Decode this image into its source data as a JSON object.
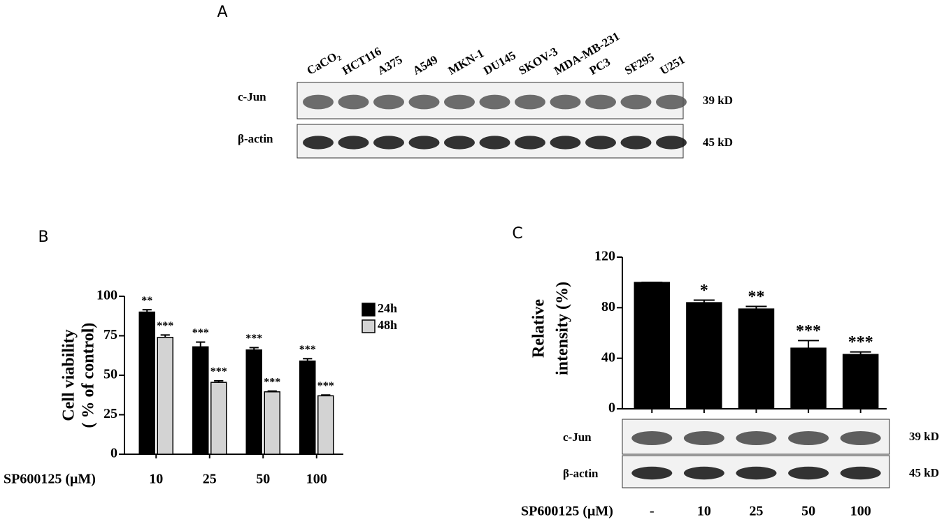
{
  "panel_a": {
    "label": "A",
    "lanes": [
      "CaCO₂",
      "HCT116",
      "A375",
      "A549",
      "MKN-1",
      "DU145",
      "SKOV-3",
      "MDA-MB-231",
      "PC3",
      "SF295",
      "U251"
    ],
    "rows": [
      {
        "name": "c-Jun",
        "size": "39 kD"
      },
      {
        "name": "β-actin",
        "size": "45 kD"
      }
    ]
  },
  "chart_data": [
    {
      "type": "bar",
      "panel_label": "B",
      "y_label": [
        "Cell viability",
        "( % of control)"
      ],
      "x_label": "SP600125  (μM)",
      "categories": [
        "10",
        "25",
        "50",
        "100"
      ],
      "series": [
        {
          "name": "24h",
          "color": "#000000",
          "values": [
            90,
            68,
            66,
            59
          ],
          "errors": [
            1.5,
            3,
            1.5,
            1.5
          ],
          "annotations": [
            "**",
            "***",
            "***",
            "***"
          ]
        },
        {
          "name": "48h",
          "color": "#d3d3d3",
          "values": [
            74,
            45.5,
            39.5,
            37
          ],
          "errors": [
            1.5,
            1,
            0.5,
            0.5
          ],
          "annotations": [
            "***",
            "***",
            "***",
            "***"
          ]
        }
      ],
      "ylim": [
        0,
        100
      ],
      "yticks": [
        0,
        25,
        50,
        75,
        100
      ],
      "legend": "right"
    },
    {
      "type": "bar",
      "panel_label": "C",
      "y_label": [
        "Relative",
        "intensity (%)"
      ],
      "x_label": "SP600125 (μM)",
      "categories": [
        "-",
        "10",
        "25",
        "50",
        "100"
      ],
      "series": [
        {
          "color": "#000000",
          "values": [
            100,
            84,
            79,
            48,
            43
          ],
          "errors": [
            0,
            2,
            2,
            6,
            2
          ],
          "annotations": [
            null,
            "*",
            "**",
            "***",
            "***"
          ]
        }
      ],
      "blot_rows": [
        {
          "name": "c-Jun",
          "size": "39 kD"
        },
        {
          "name": "β-actin",
          "size": "45 kD"
        }
      ],
      "ylim": [
        0,
        120
      ],
      "yticks": [
        0,
        40,
        80,
        120
      ]
    }
  ]
}
